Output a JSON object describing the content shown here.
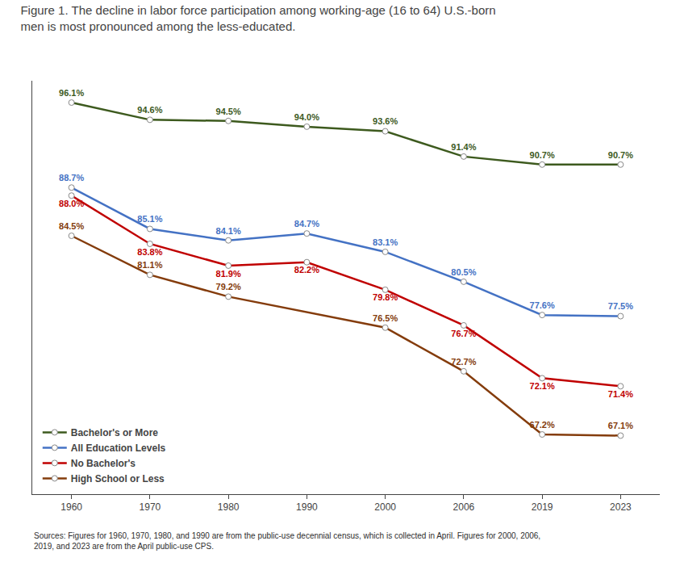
{
  "chart_data": {
    "type": "line",
    "title": "Figure 1. The decline in labor force participation among working-age (16 to 64) U.S.-born\nmen is most pronounced among the less-educated.",
    "categories": [
      "1960",
      "1970",
      "1980",
      "1990",
      "2000",
      "2006",
      "2019",
      "2023"
    ],
    "series": [
      {
        "name": "Bachelor's or More",
        "color": "#3d5a1e",
        "values": [
          96.1,
          94.6,
          94.5,
          94.0,
          93.6,
          91.4,
          90.7,
          90.7
        ],
        "value_labels": [
          "96.1%",
          "94.6%",
          "94.5%",
          "94.0%",
          "93.6%",
          "91.4%",
          "90.7%",
          "90.7%"
        ]
      },
      {
        "name": "All Education Levels",
        "color": "#4472c4",
        "values": [
          88.7,
          85.1,
          84.1,
          84.7,
          83.1,
          80.5,
          77.6,
          77.5
        ],
        "value_labels": [
          "88.7%",
          "85.1%",
          "84.1%",
          "84.7%",
          "83.1%",
          "80.5%",
          "77.6%",
          "77.5%"
        ]
      },
      {
        "name": "No Bachelor's",
        "color": "#c00000",
        "values": [
          88.0,
          83.8,
          81.9,
          82.2,
          79.8,
          76.7,
          72.1,
          71.4
        ],
        "value_labels": [
          "88.0%",
          "83.8%",
          "81.9%",
          "82.2%",
          "79.8%",
          "76.7%",
          "72.1%",
          "71.4%"
        ]
      },
      {
        "name": "High School or Less",
        "color": "#843c0c",
        "values": [
          84.5,
          81.1,
          79.2,
          null,
          76.5,
          72.7,
          67.2,
          67.1
        ],
        "value_labels": [
          "84.5%",
          "81.1%",
          "79.2%",
          null,
          "76.5%",
          "72.7%",
          "67.2%",
          "67.1%"
        ]
      }
    ],
    "ylim": [
      62,
      98
    ],
    "grid": false,
    "legend": "lower left",
    "data_labels": true,
    "tick_labels": "x",
    "marker": "circle",
    "line_style": "solid",
    "annotations": [
      "Sources: Figures for 1960, 1970, 1980, and 1990 are from the public-use decennial census, which is collected in April. Figures for 2000, 2006,\n2019, and 2023 are from the April public-use CPS."
    ]
  }
}
